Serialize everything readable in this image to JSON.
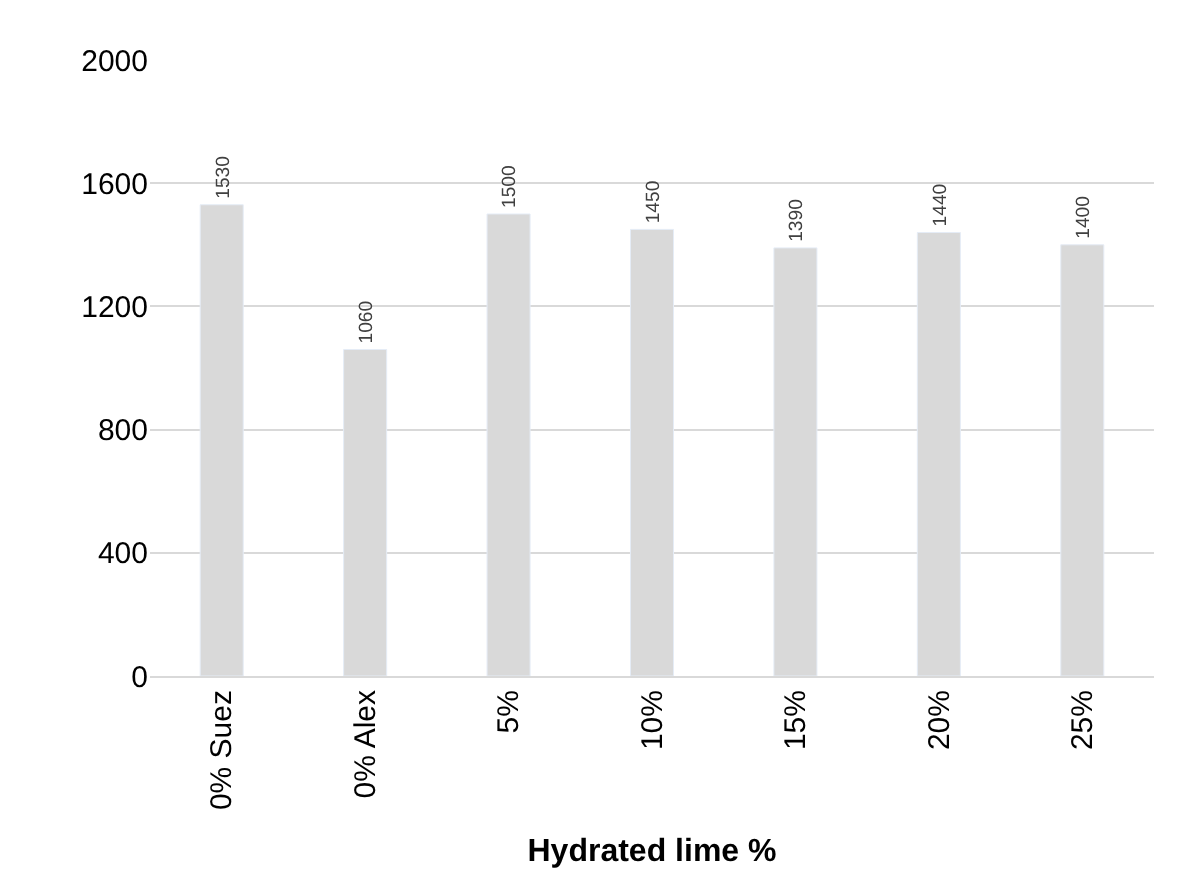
{
  "chart_data": {
    "type": "bar",
    "xlabel": "Hydrated lime %",
    "categories": [
      "0% Suez",
      "0% Alex",
      "5%",
      "10%",
      "15%",
      "20%",
      "25%"
    ],
    "values": [
      1530,
      1060,
      1500,
      1450,
      1390,
      1440,
      1400
    ],
    "color": "#d9d9d9",
    "ylim": [
      0,
      2000
    ],
    "yticks": [
      0,
      400,
      800,
      1200,
      1600,
      2000
    ],
    "grid": "y",
    "data_labels": true,
    "legend": false
  }
}
